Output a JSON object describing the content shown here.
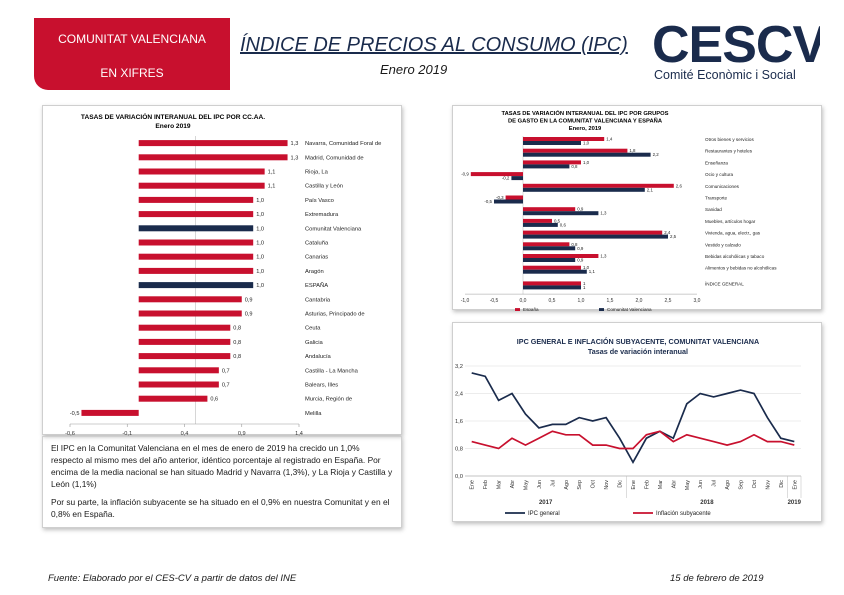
{
  "header": {
    "badge_line1": "COMUNITAT VALENCIANA",
    "badge_line2": "EN XIFRES",
    "title": "ÍNDICE DE PRECIOS AL CONSUMO (IPC)",
    "subtitle": "Enero 2019",
    "logo_text": "CESCV",
    "logo_sub": "Comité Econòmic i Social"
  },
  "colors": {
    "red": "#c8102e",
    "navy": "#1a2b4c"
  },
  "chart_data": [
    {
      "type": "bar",
      "orientation": "horizontal",
      "title": "TASAS DE VARIACIÓN INTERANUAL DEL IPC POR CC.AA.",
      "subtitle": "Enero 2019",
      "xlim": [
        -0.6,
        1.4
      ],
      "xticks": [
        "-0,6",
        "-0,1",
        "0,4",
        "0,9",
        "1,4"
      ],
      "bars": [
        {
          "label": "Navarra, Comunidad Foral de",
          "value": 1.3,
          "text": "1,3",
          "highlight": false
        },
        {
          "label": "Madrid, Comunidad de",
          "value": 1.3,
          "text": "1,3",
          "highlight": false
        },
        {
          "label": "Rioja, La",
          "value": 1.1,
          "text": "1,1",
          "highlight": false
        },
        {
          "label": "Castilla y León",
          "value": 1.1,
          "text": "1,1",
          "highlight": false
        },
        {
          "label": "País Vasco",
          "value": 1.0,
          "text": "1,0",
          "highlight": false
        },
        {
          "label": "Extremadura",
          "value": 1.0,
          "text": "1,0",
          "highlight": false
        },
        {
          "label": "Comunitat Valenciana",
          "value": 1.0,
          "text": "1,0",
          "highlight": true
        },
        {
          "label": "Cataluña",
          "value": 1.0,
          "text": "1,0",
          "highlight": false
        },
        {
          "label": "Canarias",
          "value": 1.0,
          "text": "1,0",
          "highlight": false
        },
        {
          "label": "Aragón",
          "value": 1.0,
          "text": "1,0",
          "highlight": false
        },
        {
          "label": "ESPAÑA",
          "value": 1.0,
          "text": "1,0",
          "highlight": true
        },
        {
          "label": "Cantabria",
          "value": 0.9,
          "text": "0,9",
          "highlight": false
        },
        {
          "label": "Asturias, Principado de",
          "value": 0.9,
          "text": "0,9",
          "highlight": false
        },
        {
          "label": "Ceuta",
          "value": 0.8,
          "text": "0,8",
          "highlight": false
        },
        {
          "label": "Galicia",
          "value": 0.8,
          "text": "0,8",
          "highlight": false
        },
        {
          "label": "Andalucía",
          "value": 0.8,
          "text": "0,8",
          "highlight": false
        },
        {
          "label": "Castilla - La Mancha",
          "value": 0.7,
          "text": "0,7",
          "highlight": false
        },
        {
          "label": "Balears, Illes",
          "value": 0.7,
          "text": "0,7",
          "highlight": false
        },
        {
          "label": "Murcia, Región de",
          "value": 0.6,
          "text": "0,6",
          "highlight": false
        },
        {
          "label": "Melilla",
          "value": -0.5,
          "text": "-0,5",
          "highlight": false
        }
      ]
    },
    {
      "type": "bar",
      "orientation": "horizontal",
      "title_lines": [
        "TASAS DE VARIACIÓN INTERANUAL DEL IPC POR GRUPOS",
        "DE GASTO EN LA COMUNITAT VALENCIANA Y ESPAÑA",
        "Enero, 2019"
      ],
      "xlim": [
        -1.0,
        3.0
      ],
      "xticks": [
        "-1,0",
        "-0,5",
        "0,0",
        "0,5",
        "1,0",
        "1,5",
        "2,0",
        "2,5",
        "3,0"
      ],
      "legend": [
        {
          "name": "España",
          "color": "#c8102e"
        },
        {
          "name": "Comunitat Valenciana",
          "color": "#1a2b4c"
        }
      ],
      "groups": [
        {
          "label": "Otros bienes y servicios",
          "es": 1.4,
          "es_text": "1,4",
          "cv": 1.0,
          "cv_text": "1,0"
        },
        {
          "label": "Restaurantes y hoteles",
          "es": 1.8,
          "es_text": "1,8",
          "cv": 2.2,
          "cv_text": "2,2"
        },
        {
          "label": "Enseñanza",
          "es": 1.0,
          "es_text": "1,0",
          "cv": 0.8,
          "cv_text": "0,8"
        },
        {
          "label": "Ocio y cultura",
          "es": -0.9,
          "es_text": "-0,9",
          "cv": -0.2,
          "cv_text": "-0,2"
        },
        {
          "label": "Comunicaciones",
          "es": 2.6,
          "es_text": "2,6",
          "cv": 2.1,
          "cv_text": "2,1"
        },
        {
          "label": "Transporte",
          "es": -0.3,
          "es_text": "-0,3",
          "cv": -0.5,
          "cv_text": "-0,5"
        },
        {
          "label": "Sanidad",
          "es": 0.9,
          "es_text": "0,9",
          "cv": 1.3,
          "cv_text": "1,3"
        },
        {
          "label": "Muebles, artículos hogar",
          "es": 0.5,
          "es_text": "0,5",
          "cv": 0.6,
          "cv_text": "0,6"
        },
        {
          "label": "Vivienda, agua, electr., gas",
          "es": 2.4,
          "es_text": "2,4",
          "cv": 2.5,
          "cv_text": "2,5"
        },
        {
          "label": "Vestido y calzado",
          "es": 0.8,
          "es_text": "0,8",
          "cv": 0.9,
          "cv_text": "0,9"
        },
        {
          "label": "Bebidas alcohólicas y tabaco",
          "es": 1.3,
          "es_text": "1,3",
          "cv": 0.9,
          "cv_text": "0,9"
        },
        {
          "label": "Alimentos y bebidas no alcohólicas",
          "es": 1.0,
          "es_text": "1,0",
          "cv": 1.1,
          "cv_text": "1,1"
        },
        {
          "label": "ÍNDICE GENERAL",
          "es": 1.0,
          "es_text": "1",
          "cv": 1.0,
          "cv_text": "1"
        }
      ]
    },
    {
      "type": "line",
      "title": "IPC GENERAL E INFLACIÓN SUBYACENTE, COMUNITAT VALENCIANA",
      "subtitle": "Tasas de variación interanual",
      "ylim": [
        0.0,
        3.2
      ],
      "yticks": [
        "0,0",
        "0,8",
        "1,6",
        "2,4",
        "3,2"
      ],
      "months": [
        "Ene",
        "Feb",
        "Mar",
        "Abr",
        "May",
        "Jun",
        "Jul",
        "Ago",
        "Sep",
        "Oct",
        "Nov",
        "Dic",
        "Ene",
        "Feb",
        "Mar",
        "Abr",
        "May",
        "Jun",
        "Jul",
        "Ago",
        "Sep",
        "Oct",
        "Nov",
        "Dic",
        "Ene"
      ],
      "years": [
        {
          "label": "2017",
          "span": [
            0,
            11
          ]
        },
        {
          "label": "2018",
          "span": [
            12,
            23
          ]
        },
        {
          "label": "2019",
          "span": [
            24,
            24
          ]
        }
      ],
      "series": [
        {
          "name": "IPC general",
          "color": "#1a2b4c",
          "values": [
            3.0,
            2.9,
            2.2,
            2.4,
            1.8,
            1.4,
            1.5,
            1.5,
            1.7,
            1.6,
            1.7,
            1.1,
            0.4,
            1.1,
            1.3,
            1.1,
            2.1,
            2.4,
            2.3,
            2.4,
            2.5,
            2.4,
            1.7,
            1.1,
            1.0
          ]
        },
        {
          "name": "Inflación subyacente",
          "color": "#c8102e",
          "values": [
            1.0,
            0.9,
            0.8,
            1.1,
            0.9,
            1.1,
            1.3,
            1.2,
            1.2,
            0.9,
            0.9,
            0.8,
            0.8,
            1.2,
            1.3,
            1.0,
            1.2,
            1.1,
            1.0,
            0.9,
            1.0,
            1.2,
            1.0,
            1.0,
            0.9
          ]
        }
      ]
    }
  ],
  "text": {
    "p1": "El IPC en la Comunitat Valenciana en el mes de enero de 2019 ha crecido un 1,0% respecto al mismo mes del año anterior, idéntico porcentaje al registrado en España. Por encima de la media nacional se han situado Madrid y Navarra (1,3%), y La Rioja y Castilla y León (1,1%)",
    "p2": "Por su parte, la inflación subyacente se ha situado en el 0,9% en nuestra Comunitat y en el 0,8% en España."
  },
  "footer": {
    "source": "Fuente: Elaborado por el CES-CV a partir de datos del INE",
    "date": "15 de febrero de 2019"
  }
}
